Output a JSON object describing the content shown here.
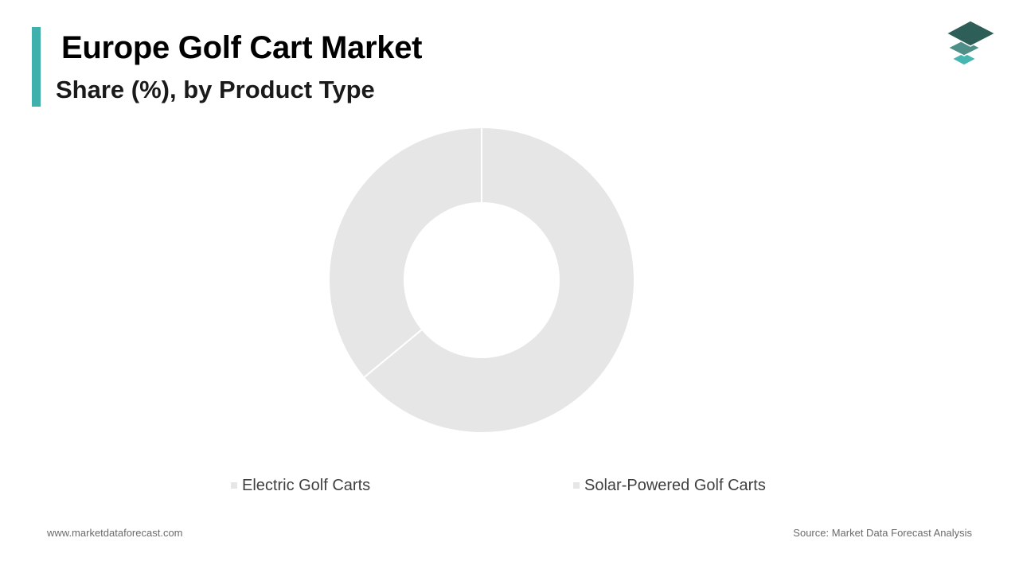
{
  "header": {
    "title": "Europe Golf Cart Market",
    "subtitle": "Share (%), by Product Type"
  },
  "logo": {
    "icon": "layered-stack-logo-icon"
  },
  "chart_data": {
    "type": "pie",
    "style": "donut",
    "categories": [
      "Electric Golf Carts",
      "Solar-Powered Golf Carts"
    ],
    "values": [
      64,
      36
    ],
    "colors": [
      "#e6e6e6",
      "#e6e6e6"
    ],
    "legend_position": "bottom"
  },
  "footer": {
    "website": "www.marketdataforecast.com",
    "source": "Source: Market Data Forecast Analysis"
  },
  "colors": {
    "accent": "#3fb0ac",
    "logo_dark": "#2e5e58",
    "logo_mid": "#4f8f88",
    "logo_light": "#47b5b0"
  }
}
